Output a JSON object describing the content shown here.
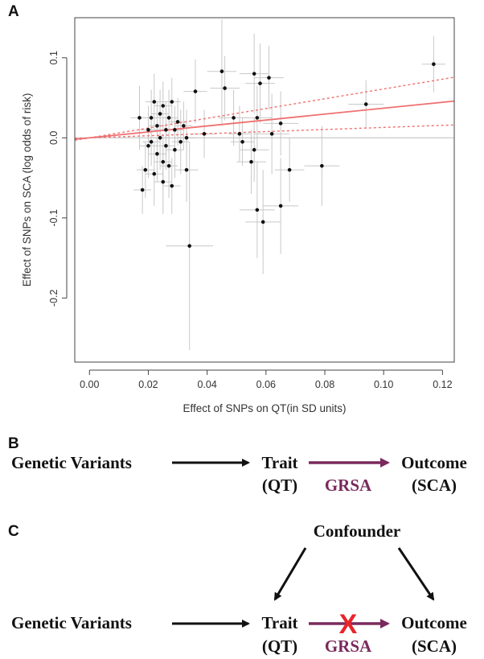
{
  "panels": {
    "a_label": "A",
    "b_label": "B",
    "c_label": "C"
  },
  "chart_data": {
    "type": "scatter",
    "title": "",
    "xlabel": "Effect of SNPs on QT(in SD units)",
    "ylabel": "Effect of SNPs on SCA (log odds of risk)",
    "xlim": [
      -0.005,
      0.124
    ],
    "ylim": [
      -0.28,
      0.15
    ],
    "xticks": [
      "0.00",
      "0.02",
      "0.04",
      "0.06",
      "0.08",
      "0.10",
      "0.12"
    ],
    "yticks": [
      "0.1",
      "0.0",
      "-0.1",
      "-0.2"
    ],
    "grid": false,
    "colors": {
      "points": "#111111",
      "error_bars": "#c8c8c8",
      "fit_line": "#f07070",
      "ci_line": "#f07070",
      "zero_line": "#bdbdbd"
    },
    "fit": {
      "slope": 0.37,
      "intercept": 0.0,
      "ci_upper_slope": 0.61,
      "ci_lower_slope": 0.13
    },
    "points": [
      {
        "x": 0.017,
        "y": 0.025,
        "xerr": 0.003,
        "yerr": 0.04
      },
      {
        "x": 0.018,
        "y": -0.065,
        "xerr": 0.003,
        "yerr": 0.03
      },
      {
        "x": 0.019,
        "y": -0.04,
        "xerr": 0.003,
        "yerr": 0.035
      },
      {
        "x": 0.02,
        "y": 0.01,
        "xerr": 0.003,
        "yerr": 0.03
      },
      {
        "x": 0.02,
        "y": -0.01,
        "xerr": 0.003,
        "yerr": 0.04
      },
      {
        "x": 0.021,
        "y": 0.025,
        "xerr": 0.003,
        "yerr": 0.035
      },
      {
        "x": 0.021,
        "y": -0.005,
        "xerr": 0.003,
        "yerr": 0.03
      },
      {
        "x": 0.022,
        "y": -0.045,
        "xerr": 0.003,
        "yerr": 0.04
      },
      {
        "x": 0.022,
        "y": 0.045,
        "xerr": 0.003,
        "yerr": 0.035
      },
      {
        "x": 0.023,
        "y": 0.015,
        "xerr": 0.003,
        "yerr": 0.03
      },
      {
        "x": 0.023,
        "y": -0.02,
        "xerr": 0.003,
        "yerr": 0.035
      },
      {
        "x": 0.024,
        "y": 0.0,
        "xerr": 0.003,
        "yerr": 0.04
      },
      {
        "x": 0.024,
        "y": 0.03,
        "xerr": 0.003,
        "yerr": 0.03
      },
      {
        "x": 0.025,
        "y": -0.03,
        "xerr": 0.003,
        "yerr": 0.035
      },
      {
        "x": 0.025,
        "y": 0.04,
        "xerr": 0.003,
        "yerr": 0.03
      },
      {
        "x": 0.025,
        "y": -0.055,
        "xerr": 0.003,
        "yerr": 0.04
      },
      {
        "x": 0.026,
        "y": 0.01,
        "xerr": 0.003,
        "yerr": 0.035
      },
      {
        "x": 0.026,
        "y": -0.01,
        "xerr": 0.003,
        "yerr": 0.03
      },
      {
        "x": 0.027,
        "y": 0.025,
        "xerr": 0.003,
        "yerr": 0.035
      },
      {
        "x": 0.027,
        "y": -0.035,
        "xerr": 0.003,
        "yerr": 0.04
      },
      {
        "x": 0.028,
        "y": 0.045,
        "xerr": 0.003,
        "yerr": 0.03
      },
      {
        "x": 0.028,
        "y": -0.06,
        "xerr": 0.003,
        "yerr": 0.035
      },
      {
        "x": 0.029,
        "y": 0.01,
        "xerr": 0.003,
        "yerr": 0.03
      },
      {
        "x": 0.029,
        "y": -0.015,
        "xerr": 0.003,
        "yerr": 0.035
      },
      {
        "x": 0.03,
        "y": 0.02,
        "xerr": 0.003,
        "yerr": 0.03
      },
      {
        "x": 0.031,
        "y": -0.005,
        "xerr": 0.003,
        "yerr": 0.04
      },
      {
        "x": 0.032,
        "y": 0.015,
        "xerr": 0.003,
        "yerr": 0.03
      },
      {
        "x": 0.033,
        "y": -0.04,
        "xerr": 0.004,
        "yerr": 0.04
      },
      {
        "x": 0.033,
        "y": 0.0,
        "xerr": 0.003,
        "yerr": 0.035
      },
      {
        "x": 0.034,
        "y": -0.135,
        "xerr": 0.008,
        "yerr": 0.13
      },
      {
        "x": 0.036,
        "y": 0.058,
        "xerr": 0.004,
        "yerr": 0.04
      },
      {
        "x": 0.039,
        "y": 0.005,
        "xerr": 0.004,
        "yerr": 0.03
      },
      {
        "x": 0.045,
        "y": 0.083,
        "xerr": 0.005,
        "yerr": 0.065
      },
      {
        "x": 0.046,
        "y": 0.062,
        "xerr": 0.005,
        "yerr": 0.04
      },
      {
        "x": 0.049,
        "y": 0.025,
        "xerr": 0.005,
        "yerr": 0.035
      },
      {
        "x": 0.051,
        "y": 0.005,
        "xerr": 0.004,
        "yerr": 0.035
      },
      {
        "x": 0.052,
        "y": -0.005,
        "xerr": 0.004,
        "yerr": 0.03
      },
      {
        "x": 0.055,
        "y": -0.03,
        "xerr": 0.005,
        "yerr": 0.04
      },
      {
        "x": 0.056,
        "y": 0.08,
        "xerr": 0.005,
        "yerr": 0.05
      },
      {
        "x": 0.056,
        "y": -0.015,
        "xerr": 0.005,
        "yerr": 0.04
      },
      {
        "x": 0.057,
        "y": 0.025,
        "xerr": 0.005,
        "yerr": 0.04
      },
      {
        "x": 0.057,
        "y": -0.09,
        "xerr": 0.006,
        "yerr": 0.06
      },
      {
        "x": 0.058,
        "y": 0.068,
        "xerr": 0.005,
        "yerr": 0.05
      },
      {
        "x": 0.059,
        "y": -0.105,
        "xerr": 0.006,
        "yerr": 0.065
      },
      {
        "x": 0.061,
        "y": 0.075,
        "xerr": 0.005,
        "yerr": 0.04
      },
      {
        "x": 0.062,
        "y": 0.005,
        "xerr": 0.006,
        "yerr": 0.05
      },
      {
        "x": 0.065,
        "y": 0.018,
        "xerr": 0.006,
        "yerr": 0.04
      },
      {
        "x": 0.065,
        "y": -0.085,
        "xerr": 0.006,
        "yerr": 0.06
      },
      {
        "x": 0.068,
        "y": -0.04,
        "xerr": 0.005,
        "yerr": 0.04
      },
      {
        "x": 0.079,
        "y": -0.035,
        "xerr": 0.006,
        "yerr": 0.05
      },
      {
        "x": 0.094,
        "y": 0.042,
        "xerr": 0.006,
        "yerr": 0.03
      },
      {
        "x": 0.117,
        "y": 0.092,
        "xerr": 0.004,
        "yerr": 0.035
      }
    ]
  },
  "diagram_b": {
    "genetic_variants": "Genetic Variants",
    "trait": "Trait",
    "trait_sub": "(QT)",
    "grsa": "GRSA",
    "outcome": "Outcome",
    "outcome_sub": "(SCA)"
  },
  "diagram_c": {
    "confounder": "Confounder",
    "genetic_variants": "Genetic Variants",
    "trait": "Trait",
    "trait_sub": "(QT)",
    "grsa": "GRSA",
    "outcome": "Outcome",
    "outcome_sub": "(SCA)",
    "cross_mark": "X"
  }
}
